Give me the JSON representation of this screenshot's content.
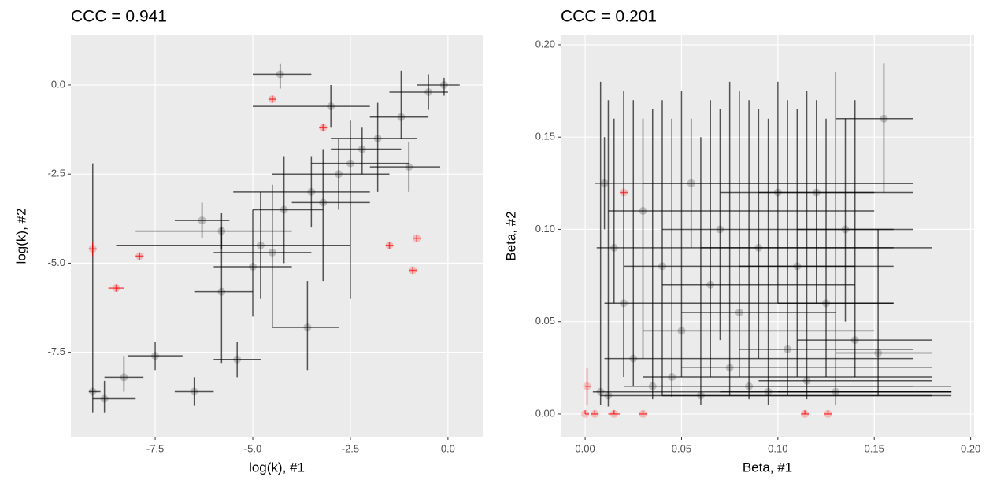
{
  "chart_data": [
    {
      "type": "scatter",
      "title": "CCC = 0.941",
      "x_label": "log(k), #1",
      "y_label": "log(k), #2",
      "xlim": [
        -9.66,
        0.89
      ],
      "ylim": [
        -9.87,
        1.39
      ],
      "xticks": [
        -7.5,
        {
          "value": -5,
          "label": "-5.0"
        },
        -2.5,
        {
          "value": 0,
          "label": "0.0"
        }
      ],
      "yticks": [
        {
          "value": 0,
          "label": "0.0"
        },
        -2.5,
        {
          "value": -5,
          "label": "-5.0"
        },
        -7.5
      ],
      "grid": true,
      "series": [
        {
          "color": "#000000",
          "points": [
            [
              -9.1,
              -8.6,
              -9.2,
              -8.9,
              -9.2,
              -2.2
            ],
            [
              -8.8,
              -8.8,
              -9.1,
              -8.0,
              -9.2,
              -8.3
            ],
            [
              -8.3,
              -8.2,
              -8.8,
              -7.8,
              -8.6,
              -7.6
            ],
            [
              -7.5,
              -7.6,
              -8.2,
              -6.8,
              -8.0,
              -7.2
            ],
            [
              -6.5,
              -8.6,
              -7.0,
              -6.0,
              -9.0,
              -8.2
            ],
            [
              -6.3,
              -3.8,
              -7.0,
              -5.6,
              -4.3,
              -3.3
            ],
            [
              -5.8,
              -4.1,
              -8.0,
              -4.0,
              -4.6,
              -3.6
            ],
            [
              -5.8,
              -5.8,
              -6.5,
              -5.0,
              -7.8,
              -4.0
            ],
            [
              -5.4,
              -7.7,
              -6.0,
              -4.8,
              -8.2,
              -7.2
            ],
            [
              -5.0,
              -5.1,
              -6.0,
              -4.0,
              -6.5,
              -3.5
            ],
            [
              -4.8,
              -4.5,
              -8.5,
              -2.5,
              -6.0,
              -3.0
            ],
            [
              -4.5,
              -4.7,
              -6.0,
              -3.5,
              -6.8,
              -2.8
            ],
            [
              -4.2,
              -3.5,
              -5.0,
              -3.2,
              -5.0,
              -2.0
            ],
            [
              -3.6,
              -6.8,
              -4.5,
              -2.8,
              -8.0,
              -5.5
            ],
            [
              -3.5,
              -3.0,
              -5.5,
              -2.0,
              -4.0,
              -2.0
            ],
            [
              -3.2,
              -3.3,
              -4.0,
              -2.0,
              -5.5,
              -1.8
            ],
            [
              -2.8,
              -2.5,
              -4.5,
              -1.5,
              -3.5,
              -1.5
            ],
            [
              -2.5,
              -2.2,
              -3.5,
              -1.0,
              -6.0,
              -1.0
            ],
            [
              -2.2,
              -1.8,
              -3.0,
              -1.2,
              -2.5,
              -1.2
            ],
            [
              -1.8,
              -1.5,
              -3.0,
              -0.8,
              -3.0,
              -0.5
            ],
            [
              -1.2,
              -0.9,
              -2.0,
              -0.5,
              -1.5,
              0.4
            ],
            [
              -1.0,
              -2.3,
              -2.0,
              -0.2,
              -3.0,
              -1.6
            ],
            [
              -0.5,
              -0.2,
              -1.5,
              0.0,
              -0.7,
              0.3
            ],
            [
              -0.1,
              0.0,
              -0.8,
              0.3,
              -0.3,
              0.2
            ],
            [
              -4.3,
              0.3,
              -5.0,
              -3.5,
              -0.1,
              0.6
            ],
            [
              -3.0,
              -0.6,
              -5.0,
              -2.0,
              -1.2,
              0.0
            ]
          ]
        },
        {
          "color": "#ff0000",
          "points": [
            [
              -9.1,
              -4.6,
              -9.2,
              -9.0,
              -4.8,
              -4.4
            ],
            [
              -7.9,
              -4.8,
              -8.0,
              -7.8,
              -4.9,
              -4.7
            ],
            [
              -8.5,
              -5.7,
              -8.7,
              -8.3,
              -5.8,
              -5.6
            ],
            [
              -0.9,
              -5.2,
              -1.0,
              -0.8,
              -5.3,
              -5.1
            ],
            [
              -0.8,
              -4.3,
              -0.9,
              -0.7,
              -4.4,
              -4.2
            ],
            [
              -4.5,
              -0.4,
              -4.6,
              -4.4,
              -0.5,
              -0.3
            ],
            [
              -3.2,
              -1.2,
              -3.3,
              -3.1,
              -1.3,
              -1.1
            ],
            [
              -1.5,
              -4.5,
              -1.6,
              -1.4,
              -4.6,
              -4.4
            ]
          ]
        }
      ]
    },
    {
      "type": "scatter",
      "title": "CCC = 0.201",
      "x_label": "Beta, #1",
      "y_label": "Beta, #2",
      "xlim": [
        -0.0127,
        0.2018
      ],
      "ylim": [
        -0.0124,
        0.2051
      ],
      "xticks": [
        {
          "value": 0,
          "label": "0.00"
        },
        0.05,
        {
          "value": 0.1,
          "label": "0.10"
        },
        0.15,
        {
          "value": 0.2,
          "label": "0.20"
        }
      ],
      "yticks": [
        {
          "value": 0,
          "label": "0.00"
        },
        0.05,
        {
          "value": 0.1,
          "label": "0.10"
        },
        0.15,
        {
          "value": 0.2,
          "label": "0.20"
        }
      ],
      "grid": true,
      "series": [
        {
          "color": "#000000",
          "points": [
            [
              0.008,
              0.012,
              0.004,
              0.19,
              0.005,
              0.18
            ],
            [
              0.01,
              0.125,
              0.005,
              0.17,
              0.1,
              0.15
            ],
            [
              0.012,
              0.01,
              0.008,
              0.18,
              0.004,
              0.17
            ],
            [
              0.015,
              0.09,
              0.006,
              0.18,
              0.06,
              0.16
            ],
            [
              0.02,
              0.06,
              0.01,
              0.16,
              0.02,
              0.175
            ],
            [
              0.025,
              0.03,
              0.01,
              0.17,
              0.015,
              0.17
            ],
            [
              0.03,
              0.11,
              0.012,
              0.15,
              0.03,
              0.16
            ],
            [
              0.035,
              0.015,
              0.02,
              0.19,
              0.008,
              0.165
            ],
            [
              0.04,
              0.08,
              0.02,
              0.14,
              0.01,
              0.17
            ],
            [
              0.045,
              0.02,
              0.03,
              0.18,
              0.009,
              0.16
            ],
            [
              0.05,
              0.045,
              0.03,
              0.15,
              0.02,
              0.175
            ],
            [
              0.055,
              0.125,
              0.03,
              0.17,
              0.09,
              0.16
            ],
            [
              0.06,
              0.01,
              0.04,
              0.19,
              0.005,
              0.15
            ],
            [
              0.065,
              0.07,
              0.04,
              0.14,
              0.02,
              0.17
            ],
            [
              0.07,
              0.1,
              0.04,
              0.16,
              0.04,
              0.165
            ],
            [
              0.075,
              0.025,
              0.05,
              0.18,
              0.01,
              0.18
            ],
            [
              0.08,
              0.055,
              0.05,
              0.13,
              0.02,
              0.175
            ],
            [
              0.085,
              0.015,
              0.06,
              0.17,
              0.008,
              0.17
            ],
            [
              0.09,
              0.09,
              0.06,
              0.16,
              0.03,
              0.165
            ],
            [
              0.095,
              0.012,
              0.07,
              0.19,
              0.005,
              0.16
            ],
            [
              0.1,
              0.12,
              0.07,
              0.15,
              0.06,
              0.18
            ],
            [
              0.105,
              0.035,
              0.08,
              0.17,
              0.01,
              0.17
            ],
            [
              0.11,
              0.08,
              0.08,
              0.16,
              0.02,
              0.165
            ],
            [
              0.115,
              0.018,
              0.09,
              0.18,
              0.008,
              0.175
            ],
            [
              0.12,
              0.12,
              0.09,
              0.17,
              0.06,
              0.17
            ],
            [
              0.125,
              0.06,
              0.1,
              0.16,
              0.02,
              0.16
            ],
            [
              0.13,
              0.012,
              0.1,
              0.19,
              0.005,
              0.185
            ],
            [
              0.135,
              0.1,
              0.11,
              0.17,
              0.05,
              0.16
            ],
            [
              0.14,
              0.04,
              0.11,
              0.18,
              0.02,
              0.17
            ],
            [
              0.155,
              0.16,
              0.13,
              0.17,
              0.12,
              0.19
            ],
            [
              0.152,
              0.033,
              0.13,
              0.18,
              0.01,
              0.1
            ]
          ]
        },
        {
          "color": "#ff0000",
          "points": [
            [
              0,
              0,
              0,
              0.002,
              0,
              0.002
            ],
            [
              0.001,
              0.015,
              0,
              0.003,
              0.005,
              0.025
            ],
            [
              0.005,
              0.0,
              0.003,
              0.007,
              0,
              0.002
            ],
            [
              0.015,
              0.0,
              0.012,
              0.018,
              0,
              0.002
            ],
            [
              0.03,
              0.0,
              0.028,
              0.032,
              0,
              0.002
            ],
            [
              0.114,
              0.0,
              0.112,
              0.116,
              0,
              0.002
            ],
            [
              0.126,
              0.0,
              0.124,
              0.128,
              0,
              0.002
            ],
            [
              0.02,
              0.12,
              0.018,
              0.022,
              0.118,
              0.122
            ]
          ]
        }
      ]
    }
  ]
}
